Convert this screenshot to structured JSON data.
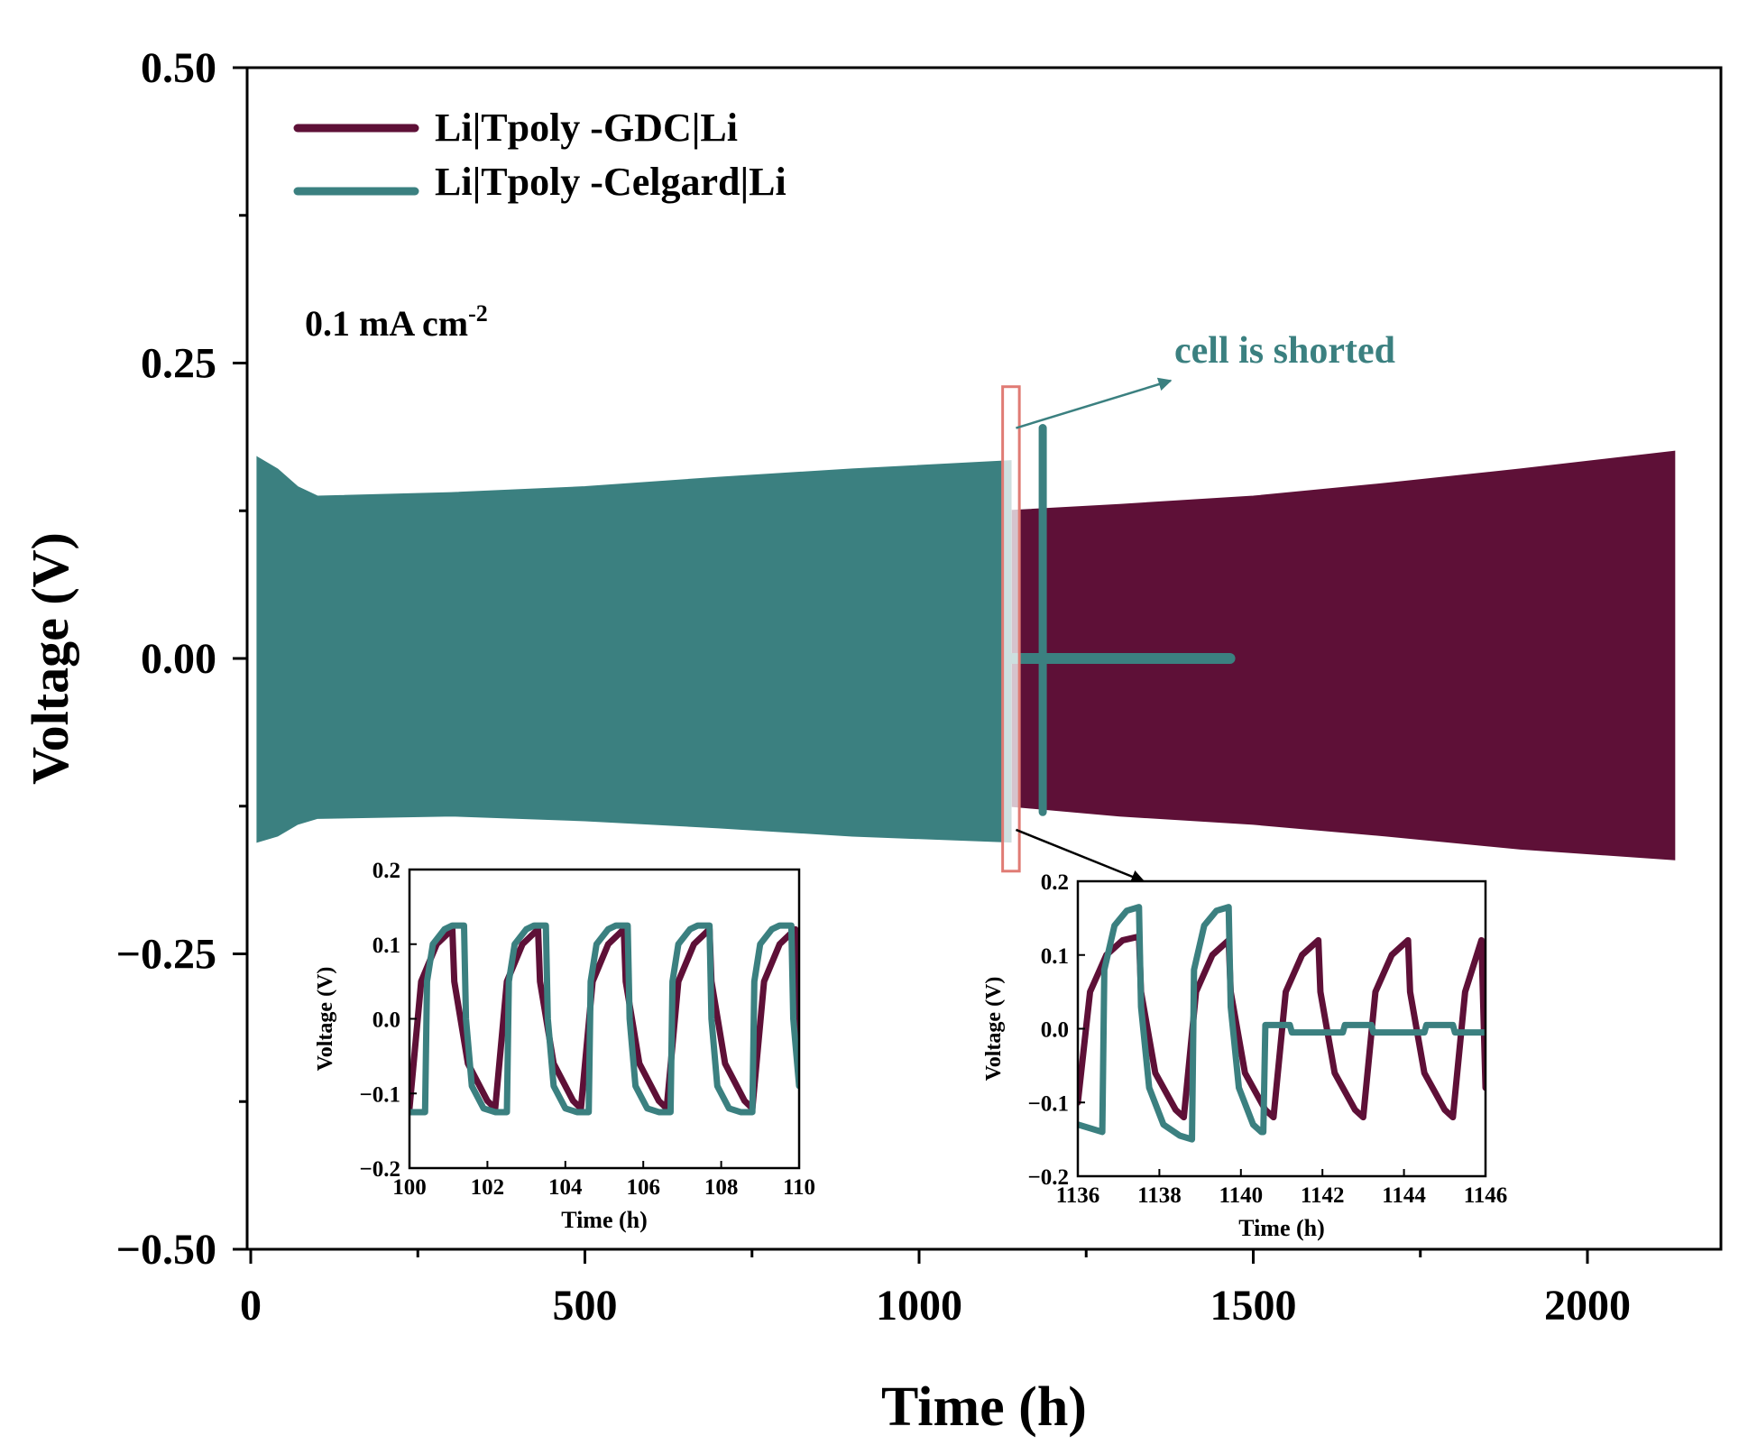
{
  "colors": {
    "gdc": "#5e1037",
    "celgard": "#3b8080",
    "highlight": "#e07b74",
    "axis": "#000000"
  },
  "chart_data": [
    {
      "type": "line",
      "title": "",
      "xlabel": "Time (h)",
      "ylabel": "Voltage (V)",
      "xlim": [
        0,
        2200
      ],
      "ylim": [
        -0.5,
        0.5
      ],
      "xticks": [
        0,
        500,
        1000,
        1500,
        2000
      ],
      "xtick_labels": [
        "0",
        "500",
        "1000",
        "1500",
        "2000"
      ],
      "yticks": [
        -0.5,
        -0.25,
        0,
        0.25,
        0.5
      ],
      "ytick_labels": [
        "−0.50",
        "−0.25",
        "0.00",
        "0.25",
        "0.50"
      ],
      "legend_position": "top-left",
      "series": [
        {
          "name": "Li|Tpoly -GDC|Li",
          "envelope": {
            "x": [
              1140,
              1300,
              1500,
              1700,
              1900,
              2130
            ],
            "upper": [
              0.125,
              0.13,
              0.137,
              0.148,
              0.16,
              0.175
            ],
            "lower": [
              -0.125,
              -0.133,
              -0.14,
              -0.15,
              -0.161,
              -0.17
            ]
          }
        },
        {
          "name": "Li|Tpoly -Celgard|Li",
          "envelope": {
            "x": [
              10,
              40,
              70,
              100,
              300,
              500,
              700,
              900,
              1137
            ],
            "upper": [
              0.17,
              0.16,
              0.145,
              0.137,
              0.14,
              0.145,
              0.153,
              0.16,
              0.167
            ],
            "lower": [
              -0.155,
              -0.15,
              -0.14,
              -0.135,
              -0.133,
              -0.137,
              -0.143,
              -0.15,
              -0.155
            ]
          },
          "after_short": {
            "spike_x": 1185,
            "spike_upper": 0.195,
            "spike_lower": -0.13,
            "flat_x": [
              1140,
              1465
            ],
            "flat_y": 0.0
          }
        }
      ],
      "annotations": [
        {
          "text": "0.1 mA cm",
          "superscript": "-2"
        },
        {
          "text": "cell is shorted"
        }
      ],
      "highlight_box": {
        "x": [
          1125,
          1150
        ],
        "y": [
          -0.18,
          0.23
        ]
      }
    },
    {
      "type": "line",
      "title": "",
      "xlabel": "Time (h)",
      "ylabel": "Voltage (V)",
      "xlim": [
        100,
        110
      ],
      "ylim": [
        -0.2,
        0.2
      ],
      "xticks": [
        100,
        102,
        104,
        106,
        108,
        110
      ],
      "xtick_labels": [
        "100",
        "102",
        "104",
        "106",
        "108",
        "110"
      ],
      "yticks": [
        -0.2,
        -0.1,
        0.0,
        0.1,
        0.2
      ],
      "ytick_labels": [
        "−0.2",
        "−0.1",
        "0.0",
        "0.1",
        "0.2"
      ],
      "series": [
        {
          "name": "Li|Tpoly -GDC|Li",
          "color_key": "gdc",
          "x": [
            100.0,
            100.3,
            100.7,
            101.1,
            101.15,
            101.5,
            102.0,
            102.2,
            102.5,
            102.9,
            103.3,
            103.35,
            103.7,
            104.2,
            104.4,
            104.7,
            105.1,
            105.5,
            105.55,
            105.9,
            106.4,
            106.6,
            106.9,
            107.3,
            107.7,
            107.75,
            108.1,
            108.6,
            108.8,
            109.1,
            109.5,
            109.9,
            110.0
          ],
          "y": [
            -0.12,
            0.05,
            0.1,
            0.12,
            0.05,
            -0.06,
            -0.11,
            -0.12,
            0.05,
            0.1,
            0.12,
            0.05,
            -0.06,
            -0.11,
            -0.12,
            0.05,
            0.1,
            0.12,
            0.05,
            -0.06,
            -0.11,
            -0.12,
            0.05,
            0.1,
            0.12,
            0.05,
            -0.06,
            -0.11,
            -0.12,
            0.05,
            0.1,
            0.12,
            -0.03
          ]
        },
        {
          "name": "Li|Tpoly -Celgard|Li",
          "color_key": "celgard",
          "x": [
            100.0,
            100.4,
            100.45,
            100.6,
            100.9,
            101.1,
            101.4,
            101.45,
            101.6,
            101.9,
            102.2,
            102.3,
            102.5,
            102.55,
            102.7,
            103.0,
            103.2,
            103.5,
            103.55,
            103.7,
            104.0,
            104.3,
            104.4,
            104.6,
            104.65,
            104.8,
            105.1,
            105.3,
            105.6,
            105.65,
            105.8,
            106.1,
            106.4,
            106.5,
            106.7,
            106.75,
            106.9,
            107.2,
            107.4,
            107.7,
            107.75,
            107.9,
            108.2,
            108.5,
            108.6,
            108.8,
            108.85,
            109.0,
            109.3,
            109.5,
            109.8,
            109.85,
            110.0
          ],
          "y": [
            -0.125,
            -0.125,
            0.05,
            0.1,
            0.12,
            0.125,
            0.125,
            0.0,
            -0.09,
            -0.12,
            -0.125,
            -0.125,
            -0.125,
            0.05,
            0.1,
            0.12,
            0.125,
            0.125,
            0.0,
            -0.09,
            -0.12,
            -0.125,
            -0.125,
            -0.125,
            0.05,
            0.1,
            0.12,
            0.125,
            0.125,
            0.0,
            -0.09,
            -0.12,
            -0.125,
            -0.125,
            -0.125,
            0.05,
            0.1,
            0.12,
            0.125,
            0.125,
            0.0,
            -0.09,
            -0.12,
            -0.125,
            -0.125,
            -0.125,
            0.05,
            0.1,
            0.12,
            0.125,
            0.125,
            0.0,
            -0.09
          ]
        }
      ]
    },
    {
      "type": "line",
      "title": "",
      "xlabel": "Time (h)",
      "ylabel": "Voltage (V)",
      "xlim": [
        1136,
        1146
      ],
      "ylim": [
        -0.2,
        0.2
      ],
      "xticks": [
        1136,
        1138,
        1140,
        1142,
        1144,
        1146
      ],
      "xtick_labels": [
        "1136",
        "1138",
        "1140",
        "1142",
        "1144",
        "1146"
      ],
      "yticks": [
        -0.2,
        -0.1,
        0.0,
        0.1,
        0.2
      ],
      "ytick_labels": [
        "−0.2",
        "−0.1",
        "0.0",
        "0.1",
        "0.2"
      ],
      "series": [
        {
          "name": "Li|Tpoly -GDC|Li",
          "color_key": "gdc",
          "x": [
            1136.0,
            1136.3,
            1136.7,
            1137.1,
            1137.5,
            1137.55,
            1137.9,
            1138.4,
            1138.6,
            1138.9,
            1139.3,
            1139.7,
            1139.75,
            1140.1,
            1140.6,
            1140.8,
            1141.1,
            1141.5,
            1141.9,
            1141.95,
            1142.3,
            1142.8,
            1143.0,
            1143.3,
            1143.7,
            1144.1,
            1144.15,
            1144.5,
            1145.0,
            1145.2,
            1145.5,
            1145.9,
            1146.0
          ],
          "y": [
            -0.1,
            0.05,
            0.1,
            0.12,
            0.125,
            0.05,
            -0.06,
            -0.11,
            -0.12,
            0.05,
            0.1,
            0.12,
            0.05,
            -0.06,
            -0.11,
            -0.12,
            0.05,
            0.1,
            0.12,
            0.05,
            -0.06,
            -0.11,
            -0.12,
            0.05,
            0.1,
            0.12,
            0.05,
            -0.06,
            -0.11,
            -0.12,
            0.05,
            0.12,
            -0.08
          ]
        },
        {
          "name": "Li|Tpoly -Celgard|Li",
          "color_key": "celgard",
          "x": [
            1136.0,
            1136.6,
            1136.65,
            1136.9,
            1137.2,
            1137.5,
            1137.55,
            1137.75,
            1138.1,
            1138.5,
            1138.8,
            1138.85,
            1139.1,
            1139.4,
            1139.7,
            1139.75,
            1139.95,
            1140.3,
            1140.5,
            1140.55,
            1140.6,
            1141.2,
            1141.25,
            1142.5,
            1142.55,
            1143.2,
            1143.25,
            1144.5,
            1144.55,
            1145.2,
            1145.25,
            1146.0
          ],
          "y": [
            -0.13,
            -0.14,
            0.08,
            0.14,
            0.16,
            0.165,
            0.03,
            -0.08,
            -0.13,
            -0.145,
            -0.15,
            0.08,
            0.14,
            0.16,
            0.165,
            0.03,
            -0.08,
            -0.13,
            -0.14,
            -0.14,
            0.005,
            0.005,
            -0.005,
            -0.005,
            0.005,
            0.005,
            -0.005,
            -0.005,
            0.005,
            0.005,
            -0.005,
            -0.005
          ]
        }
      ]
    }
  ]
}
